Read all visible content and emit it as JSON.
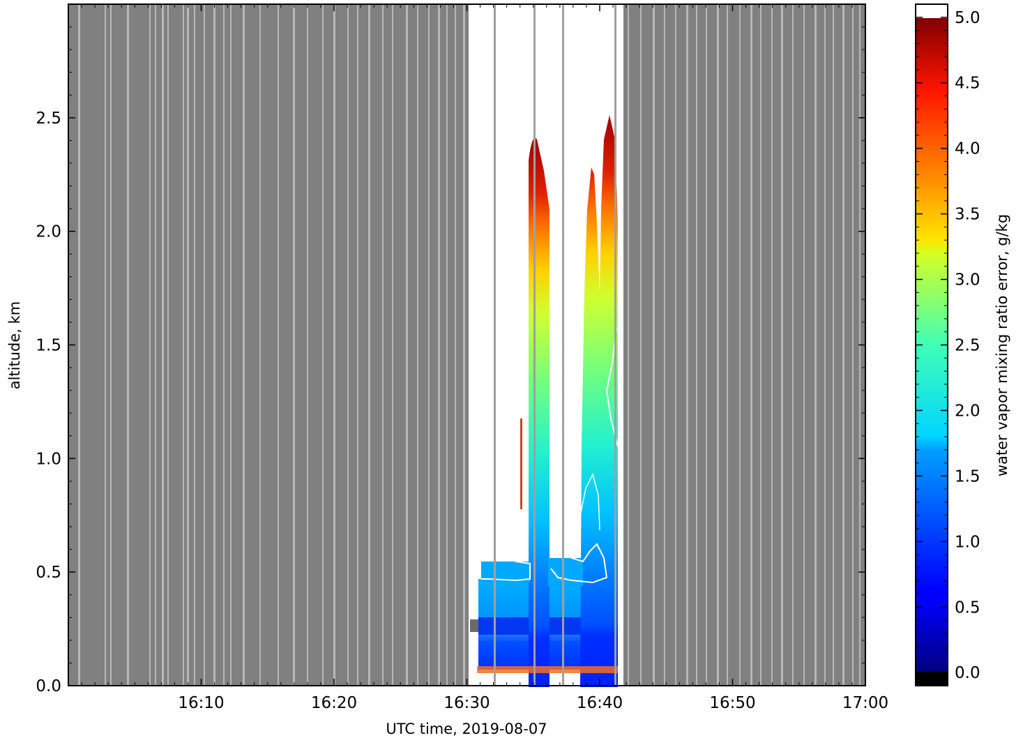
{
  "chart_data": {
    "type": "heatmap",
    "xlabel": "UTC time,  2019-08-07",
    "ylabel": "altitude, km",
    "xlim": [
      "16:00",
      "17:00"
    ],
    "ylim": [
      0.0,
      3.0
    ],
    "x_ticks": [
      "16:10",
      "16:20",
      "16:30",
      "16:40",
      "16:50",
      "17:00"
    ],
    "y_ticks": [
      "0.0",
      "0.5",
      "1.0",
      "1.5",
      "2.0",
      "2.5"
    ],
    "colorbar": {
      "label": "water vapor mixing ratio error, g/kg",
      "range": [
        -0.1,
        5.1
      ],
      "ticks": [
        "0.0",
        "0.5",
        "1.0",
        "1.5",
        "2.0",
        "2.5",
        "3.0",
        "3.5",
        "4.0",
        "4.5",
        "5.0"
      ],
      "colormap": "jet",
      "under_color": "#000000",
      "over_color": "#ffffff"
    },
    "regions": [
      {
        "t_start": "16:00",
        "t_end": "16:30.3",
        "state": "no data",
        "color": "#808080"
      },
      {
        "t_start": "16:30.3",
        "t_end": "16:41.6",
        "state": "measured",
        "alt_km": [
          0.05,
          2.6
        ],
        "error_range_gkg": [
          0.5,
          5.0
        ]
      },
      {
        "t_start": "16:41.6",
        "t_end": "17:00",
        "state": "no data",
        "color": "#808080"
      }
    ],
    "error_profile": [
      {
        "altitude_km": 0.1,
        "error_gkg": 0.7
      },
      {
        "altitude_km": 0.3,
        "error_gkg": 1.0
      },
      {
        "altitude_km": 0.5,
        "error_gkg": 1.5
      },
      {
        "altitude_km": 0.8,
        "error_gkg": 1.8
      },
      {
        "altitude_km": 1.0,
        "error_gkg": 2.0
      },
      {
        "altitude_km": 1.5,
        "error_gkg": 2.8
      },
      {
        "altitude_km": 2.0,
        "error_gkg": 3.8
      },
      {
        "altitude_km": 2.3,
        "error_gkg": 4.8
      }
    ],
    "grid": false
  }
}
